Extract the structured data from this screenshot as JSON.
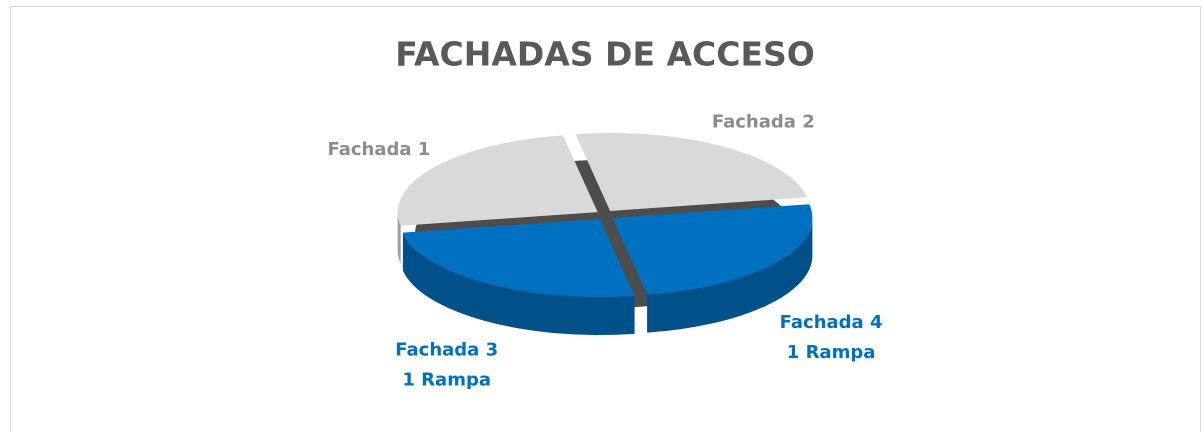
{
  "chart_data": {
    "type": "pie3d",
    "title": "FACHADAS DE ACCESO",
    "categories": [
      [
        "Fachada 2"
      ],
      [
        "Fachada 4",
        "1 Rampa"
      ],
      [
        "Fachada 3",
        "1 Rampa"
      ],
      [
        "Fachada 1"
      ]
    ],
    "values": [
      25,
      25,
      25,
      25
    ],
    "colors": [
      "#d9d9d9",
      "#0070c0",
      "#0070c0",
      "#d9d9d9"
    ],
    "label_colors": [
      "#8c8c8c",
      "#0070c0",
      "#0070c0",
      "#8c8c8c"
    ]
  }
}
